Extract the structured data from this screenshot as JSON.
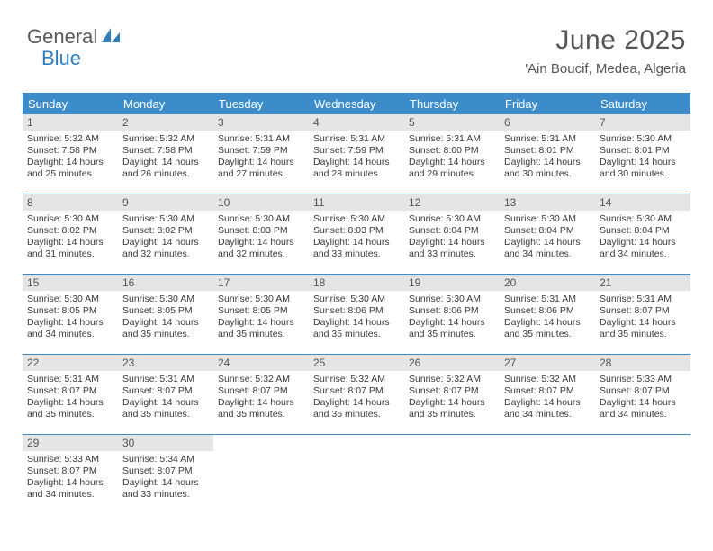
{
  "brand": {
    "part1": "General",
    "part2": "Blue"
  },
  "title": "June 2025",
  "location": "'Ain Boucif, Medea, Algeria",
  "colors": {
    "header_bg": "#3c8cca",
    "header_text": "#ffffff",
    "daynum_bg": "#e5e5e5",
    "row_border": "#3c8cca",
    "body_text": "#3a3a3a",
    "brand_gray": "#5a5a5a",
    "brand_blue": "#2f7fc0"
  },
  "weekdays": [
    "Sunday",
    "Monday",
    "Tuesday",
    "Wednesday",
    "Thursday",
    "Friday",
    "Saturday"
  ],
  "weeks": [
    [
      {
        "n": "1",
        "sr": "5:32 AM",
        "ss": "7:58 PM",
        "dl": "14 hours and 25 minutes."
      },
      {
        "n": "2",
        "sr": "5:32 AM",
        "ss": "7:58 PM",
        "dl": "14 hours and 26 minutes."
      },
      {
        "n": "3",
        "sr": "5:31 AM",
        "ss": "7:59 PM",
        "dl": "14 hours and 27 minutes."
      },
      {
        "n": "4",
        "sr": "5:31 AM",
        "ss": "7:59 PM",
        "dl": "14 hours and 28 minutes."
      },
      {
        "n": "5",
        "sr": "5:31 AM",
        "ss": "8:00 PM",
        "dl": "14 hours and 29 minutes."
      },
      {
        "n": "6",
        "sr": "5:31 AM",
        "ss": "8:01 PM",
        "dl": "14 hours and 30 minutes."
      },
      {
        "n": "7",
        "sr": "5:30 AM",
        "ss": "8:01 PM",
        "dl": "14 hours and 30 minutes."
      }
    ],
    [
      {
        "n": "8",
        "sr": "5:30 AM",
        "ss": "8:02 PM",
        "dl": "14 hours and 31 minutes."
      },
      {
        "n": "9",
        "sr": "5:30 AM",
        "ss": "8:02 PM",
        "dl": "14 hours and 32 minutes."
      },
      {
        "n": "10",
        "sr": "5:30 AM",
        "ss": "8:03 PM",
        "dl": "14 hours and 32 minutes."
      },
      {
        "n": "11",
        "sr": "5:30 AM",
        "ss": "8:03 PM",
        "dl": "14 hours and 33 minutes."
      },
      {
        "n": "12",
        "sr": "5:30 AM",
        "ss": "8:04 PM",
        "dl": "14 hours and 33 minutes."
      },
      {
        "n": "13",
        "sr": "5:30 AM",
        "ss": "8:04 PM",
        "dl": "14 hours and 34 minutes."
      },
      {
        "n": "14",
        "sr": "5:30 AM",
        "ss": "8:04 PM",
        "dl": "14 hours and 34 minutes."
      }
    ],
    [
      {
        "n": "15",
        "sr": "5:30 AM",
        "ss": "8:05 PM",
        "dl": "14 hours and 34 minutes."
      },
      {
        "n": "16",
        "sr": "5:30 AM",
        "ss": "8:05 PM",
        "dl": "14 hours and 35 minutes."
      },
      {
        "n": "17",
        "sr": "5:30 AM",
        "ss": "8:05 PM",
        "dl": "14 hours and 35 minutes."
      },
      {
        "n": "18",
        "sr": "5:30 AM",
        "ss": "8:06 PM",
        "dl": "14 hours and 35 minutes."
      },
      {
        "n": "19",
        "sr": "5:30 AM",
        "ss": "8:06 PM",
        "dl": "14 hours and 35 minutes."
      },
      {
        "n": "20",
        "sr": "5:31 AM",
        "ss": "8:06 PM",
        "dl": "14 hours and 35 minutes."
      },
      {
        "n": "21",
        "sr": "5:31 AM",
        "ss": "8:07 PM",
        "dl": "14 hours and 35 minutes."
      }
    ],
    [
      {
        "n": "22",
        "sr": "5:31 AM",
        "ss": "8:07 PM",
        "dl": "14 hours and 35 minutes."
      },
      {
        "n": "23",
        "sr": "5:31 AM",
        "ss": "8:07 PM",
        "dl": "14 hours and 35 minutes."
      },
      {
        "n": "24",
        "sr": "5:32 AM",
        "ss": "8:07 PM",
        "dl": "14 hours and 35 minutes."
      },
      {
        "n": "25",
        "sr": "5:32 AM",
        "ss": "8:07 PM",
        "dl": "14 hours and 35 minutes."
      },
      {
        "n": "26",
        "sr": "5:32 AM",
        "ss": "8:07 PM",
        "dl": "14 hours and 35 minutes."
      },
      {
        "n": "27",
        "sr": "5:32 AM",
        "ss": "8:07 PM",
        "dl": "14 hours and 34 minutes."
      },
      {
        "n": "28",
        "sr": "5:33 AM",
        "ss": "8:07 PM",
        "dl": "14 hours and 34 minutes."
      }
    ],
    [
      {
        "n": "29",
        "sr": "5:33 AM",
        "ss": "8:07 PM",
        "dl": "14 hours and 34 minutes."
      },
      {
        "n": "30",
        "sr": "5:34 AM",
        "ss": "8:07 PM",
        "dl": "14 hours and 33 minutes."
      },
      null,
      null,
      null,
      null,
      null
    ]
  ],
  "labels": {
    "sunrise": "Sunrise:",
    "sunset": "Sunset:",
    "daylight": "Daylight:"
  }
}
